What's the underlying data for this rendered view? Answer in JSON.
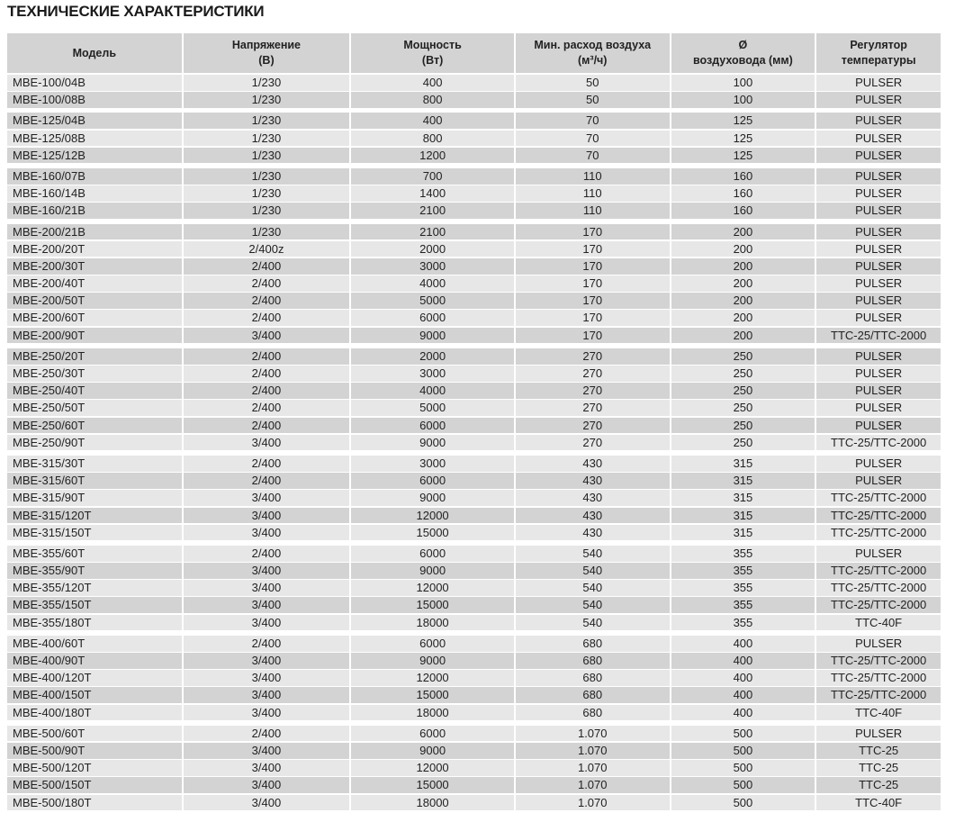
{
  "title": "ТЕХНИЧЕСКИЕ ХАРАКТЕРИСТИКИ",
  "header": {
    "model": "Модель",
    "voltage": [
      "Напряжение",
      "(В)"
    ],
    "power": [
      "Мощность",
      "(Вт)"
    ],
    "airflow": [
      "Мин. расход воздуха",
      "(м³/ч)"
    ],
    "duct": [
      "Ø",
      "воздуховода (мм)"
    ],
    "regulator": [
      "Регулятор",
      "температуры"
    ]
  },
  "groups": [
    [
      [
        "MBE-100/04B",
        "1/230",
        "400",
        "50",
        "100",
        "PULSER"
      ],
      [
        "MBE-100/08B",
        "1/230",
        "800",
        "50",
        "100",
        "PULSER"
      ]
    ],
    [
      [
        "MBE-125/04B",
        "1/230",
        "400",
        "70",
        "125",
        "PULSER"
      ],
      [
        "MBE-125/08B",
        "1/230",
        "800",
        "70",
        "125",
        "PULSER"
      ],
      [
        "MBE-125/12B",
        "1/230",
        "1200",
        "70",
        "125",
        "PULSER"
      ]
    ],
    [
      [
        "MBE-160/07B",
        "1/230",
        "700",
        "110",
        "160",
        "PULSER"
      ],
      [
        "MBE-160/14B",
        "1/230",
        "1400",
        "110",
        "160",
        "PULSER"
      ],
      [
        "MBE-160/21B",
        "1/230",
        "2100",
        "110",
        "160",
        "PULSER"
      ]
    ],
    [
      [
        "MBE-200/21B",
        "1/230",
        "2100",
        "170",
        "200",
        "PULSER"
      ],
      [
        "MBE-200/20T",
        "2/400z",
        "2000",
        "170",
        "200",
        "PULSER"
      ],
      [
        "MBE-200/30T",
        "2/400",
        "3000",
        "170",
        "200",
        "PULSER"
      ],
      [
        "MBE-200/40T",
        "2/400",
        "4000",
        "170",
        "200",
        "PULSER"
      ],
      [
        "MBE-200/50T",
        "2/400",
        "5000",
        "170",
        "200",
        "PULSER"
      ],
      [
        "MBE-200/60T",
        "2/400",
        "6000",
        "170",
        "200",
        "PULSER"
      ],
      [
        "MBE-200/90T",
        "3/400",
        "9000",
        "170",
        "200",
        "TTC-25/TTC-2000"
      ]
    ],
    [
      [
        "MBE-250/20T",
        "2/400",
        "2000",
        "270",
        "250",
        "PULSER"
      ],
      [
        "MBE-250/30T",
        "2/400",
        "3000",
        "270",
        "250",
        "PULSER"
      ],
      [
        "MBE-250/40T",
        "2/400",
        "4000",
        "270",
        "250",
        "PULSER"
      ],
      [
        "MBE-250/50T",
        "2/400",
        "5000",
        "270",
        "250",
        "PULSER"
      ],
      [
        "MBE-250/60T",
        "2/400",
        "6000",
        "270",
        "250",
        "PULSER"
      ],
      [
        "MBE-250/90T",
        "3/400",
        "9000",
        "270",
        "250",
        "TTC-25/TTC-2000"
      ]
    ],
    [
      [
        "MBE-315/30T",
        "2/400",
        "3000",
        "430",
        "315",
        "PULSER"
      ],
      [
        "MBE-315/60T",
        "2/400",
        "6000",
        "430",
        "315",
        "PULSER"
      ],
      [
        "MBE-315/90T",
        "3/400",
        "9000",
        "430",
        "315",
        "TTC-25/TTC-2000"
      ],
      [
        "MBE-315/120T",
        "3/400",
        "12000",
        "430",
        "315",
        "TTC-25/TTC-2000"
      ],
      [
        "MBE-315/150T",
        "3/400",
        "15000",
        "430",
        "315",
        "TTC-25/TTC-2000"
      ]
    ],
    [
      [
        "MBE-355/60T",
        "2/400",
        "6000",
        "540",
        "355",
        "PULSER"
      ],
      [
        "MBE-355/90T",
        "3/400",
        "9000",
        "540",
        "355",
        "TTC-25/TTC-2000"
      ],
      [
        "MBE-355/120T",
        "3/400",
        "12000",
        "540",
        "355",
        "TTC-25/TTC-2000"
      ],
      [
        "MBE-355/150T",
        "3/400",
        "15000",
        "540",
        "355",
        "TTC-25/TTC-2000"
      ],
      [
        "MBE-355/180T",
        "3/400",
        "18000",
        "540",
        "355",
        "TTC-40F"
      ]
    ],
    [
      [
        "MBE-400/60T",
        "2/400",
        "6000",
        "680",
        "400",
        "PULSER"
      ],
      [
        "MBE-400/90T",
        "3/400",
        "9000",
        "680",
        "400",
        "TTC-25/TTC-2000"
      ],
      [
        "MBE-400/120T",
        "3/400",
        "12000",
        "680",
        "400",
        "TTC-25/TTC-2000"
      ],
      [
        "MBE-400/150T",
        "3/400",
        "15000",
        "680",
        "400",
        "TTC-25/TTC-2000"
      ],
      [
        "MBE-400/180T",
        "3/400",
        "18000",
        "680",
        "400",
        "TTC-40F"
      ]
    ],
    [
      [
        "MBE-500/60T",
        "2/400",
        "6000",
        "1.070",
        "500",
        "PULSER"
      ],
      [
        "MBE-500/90T",
        "3/400",
        "9000",
        "1.070",
        "500",
        "TTC-25"
      ],
      [
        "MBE-500/120T",
        "3/400",
        "12000",
        "1.070",
        "500",
        "TTC-25"
      ],
      [
        "MBE-500/150T",
        "3/400",
        "15000",
        "1.070",
        "500",
        "TTC-25"
      ],
      [
        "MBE-500/180T",
        "3/400",
        "18000",
        "1.070",
        "500",
        "TTC-40F"
      ]
    ]
  ]
}
